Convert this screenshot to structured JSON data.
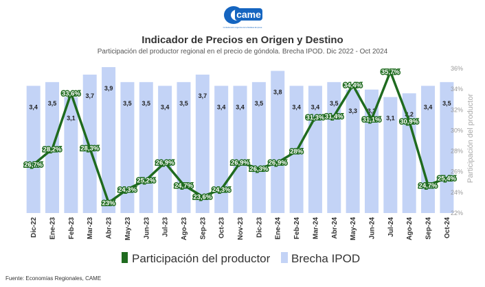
{
  "header": {
    "logo_text": "came",
    "logo_tagline": "Confederación Argentina de la Mediana Empresa",
    "title": "Indicador de Precios en Origen y Destino",
    "subtitle": "Participación del productor regional en el precio de góndola. Brecha IPOD. Dic 2022 - Oct 2024"
  },
  "footer": {
    "source": "Fuente: Economías Regionales, CAME"
  },
  "colors": {
    "bar": "#c3d3f6",
    "line": "#1f6b1f",
    "label_outline": "#1f6b1f",
    "axis_text": "#999999"
  },
  "chart_data": {
    "type": "bar+line",
    "categories": [
      "Dic-22",
      "Ene-23",
      "Feb-23",
      "Mar-23",
      "Abr-23",
      "May-23",
      "Jun-23",
      "Jul-23",
      "Ago-23",
      "Sep-23",
      "Oct-23",
      "Nov-23",
      "Dic-23",
      "Ene-24",
      "Feb-24",
      "Mar-24",
      "Abr-24",
      "May-24",
      "Jun-24",
      "Jul-24",
      "Ago-24",
      "Sep-24",
      "Oct-24"
    ],
    "ylabel_right": "Participación del productor",
    "y_right_range": [
      22,
      36
    ],
    "y_right_ticks": [
      "22%",
      "24%",
      "26%",
      "28%",
      "30%",
      "32%",
      "34%",
      "36%"
    ],
    "bar_axis_range": [
      0,
      3.9
    ],
    "series": [
      {
        "name": "Brecha IPOD",
        "type": "bar",
        "values": [
          3.4,
          3.5,
          3.1,
          3.7,
          3.9,
          3.5,
          3.5,
          3.4,
          3.5,
          3.7,
          3.4,
          3.4,
          3.5,
          3.8,
          3.4,
          3.4,
          3.5,
          3.3,
          3.3,
          3.1,
          3.2,
          3.4,
          3.5
        ],
        "labels": [
          "3,4",
          "3,5",
          "3,1",
          "3,7",
          "3,9",
          "3,5",
          "3,5",
          "3,4",
          "3,5",
          "3,7",
          "3,4",
          "3,4",
          "3,5",
          "3,8",
          "3,4",
          "3,4",
          "3,5",
          "3,3",
          "3,3",
          "3,1",
          "3,2",
          "3,4",
          "3,5"
        ]
      },
      {
        "name": "Participación del productor",
        "type": "line",
        "values": [
          26.7,
          28.2,
          33.6,
          28.3,
          23.0,
          24.3,
          25.2,
          26.9,
          24.7,
          23.6,
          24.3,
          26.9,
          26.3,
          26.9,
          28.0,
          31.3,
          31.4,
          34.4,
          31.1,
          35.7,
          30.9,
          24.7,
          25.4
        ],
        "labels": [
          "26,7%",
          "28,2%",
          "33,6%",
          "28,3%",
          "23%",
          "24,3%",
          "25,2%",
          "26,9%",
          "24,7%",
          "23,6%",
          "24,3%",
          "26,9%",
          "26,3%",
          "26,9%",
          "28%",
          "31,3%",
          "31,4%",
          "34,4%",
          "31,1%",
          "35,7%",
          "30,9%",
          "24,7%",
          "25,4%"
        ]
      }
    ],
    "legend": {
      "placement": "bottom",
      "items": [
        {
          "label": "Participación del productor",
          "color": "#1f6b1f"
        },
        {
          "label": "Brecha IPOD",
          "color": "#c3d3f6"
        }
      ]
    },
    "grid": false
  }
}
